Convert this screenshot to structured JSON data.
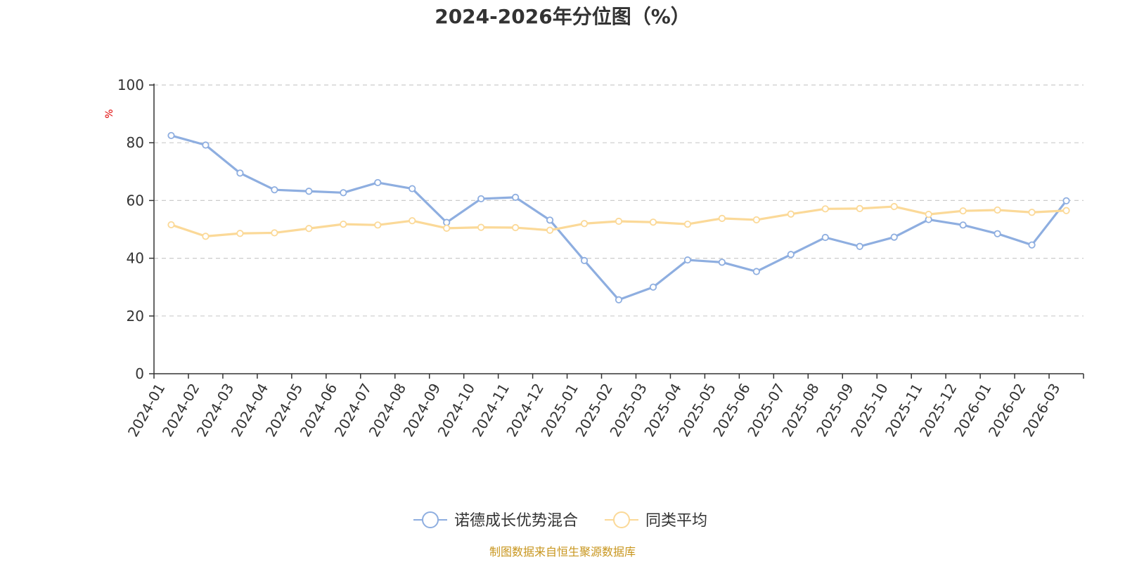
{
  "chart_data": {
    "type": "line",
    "title": "2024-2026年分位图（%）",
    "ylabel": "%",
    "xlabel": "",
    "ylim": [
      0,
      100
    ],
    "yticks": [
      0,
      20,
      40,
      60,
      80,
      100
    ],
    "grid": true,
    "legend_position": "bottom",
    "categories": [
      "2024-01",
      "2024-02",
      "2024-03",
      "2024-04",
      "2024-05",
      "2024-06",
      "2024-07",
      "2024-08",
      "2024-09",
      "2024-10",
      "2024-11",
      "2024-12",
      "2025-01",
      "2025-02",
      "2025-03",
      "2025-04",
      "2025-05",
      "2025-06",
      "2025-07",
      "2025-08",
      "2025-09",
      "2025-10",
      "2025-11",
      "2025-12",
      "2026-01",
      "2026-02",
      "2026-03"
    ],
    "series": [
      {
        "name": "诺德成长优势混合",
        "color": "#8eaee0",
        "values": [
          82.5,
          79.2,
          69.5,
          63.7,
          63.2,
          62.7,
          66.2,
          64.1,
          52.4,
          60.6,
          61.1,
          53.2,
          39.2,
          25.6,
          30.0,
          39.4,
          38.6,
          35.4,
          41.3,
          47.2,
          44.1,
          47.3,
          53.4,
          51.5,
          48.5,
          44.6,
          59.9
        ]
      },
      {
        "name": "同类平均",
        "color": "#fbd998",
        "values": [
          51.6,
          47.6,
          48.6,
          48.8,
          50.3,
          51.8,
          51.5,
          53.0,
          50.4,
          50.7,
          50.6,
          49.7,
          52.0,
          52.8,
          52.5,
          51.8,
          53.8,
          53.3,
          55.3,
          57.1,
          57.2,
          57.9,
          55.2,
          56.4,
          56.7,
          55.9,
          56.5
        ]
      }
    ]
  },
  "source_text": "制图数据来自恒生聚源数据库",
  "colors": {
    "axis": "#333333",
    "grid": "#cccccc",
    "unit": "#e00000",
    "source": "#c8961e"
  }
}
